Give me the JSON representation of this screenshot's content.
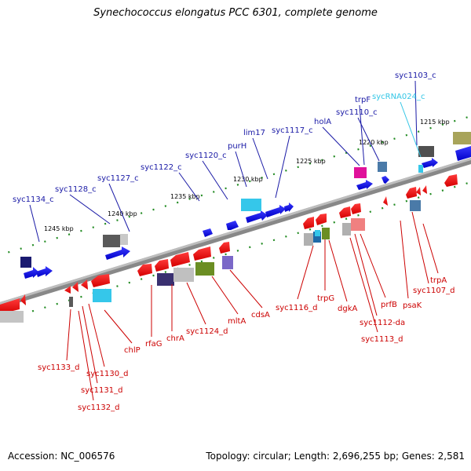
{
  "title": "Synechococcus elongatus PCC 6301, complete genome",
  "footer": {
    "accession": "Accession: NC_006576",
    "summary": "Topology: circular; Length: 2,696,255 bp; Genes: 2,581"
  },
  "colors": {
    "forward_gene": "#0000ee",
    "reverse_gene": "#ee0000",
    "forward_label": "#1a1aa6",
    "reverse_label": "#cc0000",
    "rna_label": "#33c6e6",
    "backbone": "#7a7a7a",
    "tick": "#228b22"
  },
  "ruler": [
    {
      "label": "1215 kbp"
    },
    {
      "label": "1220 kbp"
    },
    {
      "label": "1225 kbp"
    },
    {
      "label": "1230 kbp"
    },
    {
      "label": "1235 kbp"
    },
    {
      "label": "1240 kbp"
    },
    {
      "label": "1245 kbp"
    }
  ],
  "forward_labels": [
    {
      "text": "syc1103_c",
      "kind": "gene"
    },
    {
      "text": "sycRNA024_c",
      "kind": "rna"
    },
    {
      "text": "trpF",
      "kind": "gene"
    },
    {
      "text": "syc1110_c",
      "kind": "gene"
    },
    {
      "text": "holA",
      "kind": "gene"
    },
    {
      "text": "syc1117_c",
      "kind": "gene"
    },
    {
      "text": "lim17",
      "kind": "gene"
    },
    {
      "text": "purH",
      "kind": "gene"
    },
    {
      "text": "syc1120_c",
      "kind": "gene"
    },
    {
      "text": "syc1122_c",
      "kind": "gene"
    },
    {
      "text": "syc1127_c",
      "kind": "gene"
    },
    {
      "text": "syc1128_c",
      "kind": "gene"
    },
    {
      "text": "syc1134_c",
      "kind": "gene"
    }
  ],
  "reverse_labels": [
    {
      "text": "trpA"
    },
    {
      "text": "syc1107_d"
    },
    {
      "text": "psaK"
    },
    {
      "text": "prfB"
    },
    {
      "text": "syc1112-da"
    },
    {
      "text": "syc1113_d"
    },
    {
      "text": "dgkA"
    },
    {
      "text": "trpG"
    },
    {
      "text": "syc1116_d"
    },
    {
      "text": "cdsA"
    },
    {
      "text": "mltA"
    },
    {
      "text": "syc1124_d"
    },
    {
      "text": "chrA"
    },
    {
      "text": "rfaG"
    },
    {
      "text": "chlP"
    },
    {
      "text": "syc1130_d"
    },
    {
      "text": "syc1131_d"
    },
    {
      "text": "syc1132_d"
    },
    {
      "text": "syc1133_d"
    }
  ]
}
